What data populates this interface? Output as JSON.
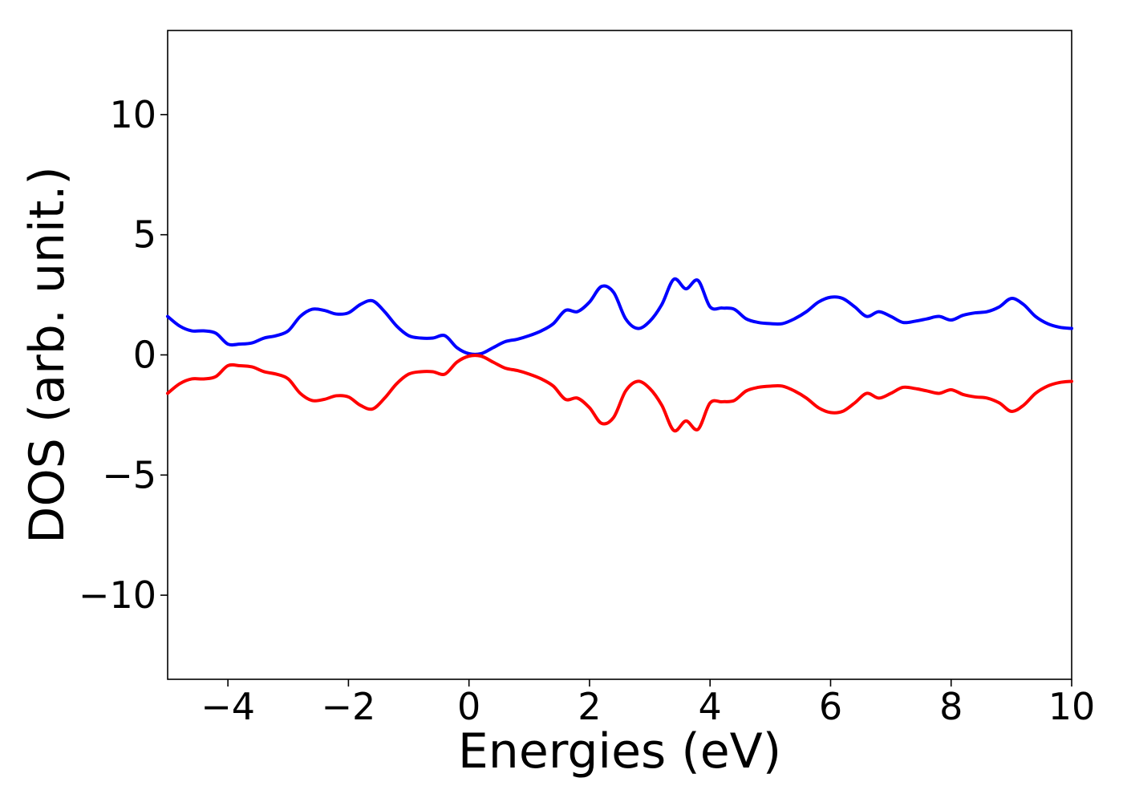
{
  "chart_data": {
    "type": "line",
    "title": "",
    "xlabel": "Energies (eV)",
    "ylabel": "DOS (arb. unit.)",
    "xlim": [
      -5,
      10
    ],
    "ylim": [
      -13.5,
      13.5
    ],
    "xticks": [
      -4,
      -2,
      0,
      2,
      4,
      6,
      8,
      10
    ],
    "xtick_labels": [
      "−4",
      "−2",
      "0",
      "2",
      "4",
      "6",
      "8",
      "10"
    ],
    "yticks": [
      -10,
      -5,
      0,
      5,
      10
    ],
    "ytick_labels": [
      "−10",
      "−5",
      "0",
      "5",
      "10"
    ],
    "grid": false,
    "legend": false,
    "x": [
      -5.0,
      -4.8,
      -4.6,
      -4.4,
      -4.2,
      -4.0,
      -3.8,
      -3.6,
      -3.4,
      -3.2,
      -3.0,
      -2.8,
      -2.6,
      -2.4,
      -2.2,
      -2.0,
      -1.8,
      -1.6,
      -1.4,
      -1.2,
      -1.0,
      -0.8,
      -0.6,
      -0.4,
      -0.2,
      0.0,
      0.2,
      0.4,
      0.6,
      0.8,
      1.0,
      1.2,
      1.4,
      1.6,
      1.8,
      2.0,
      2.2,
      2.4,
      2.6,
      2.8,
      3.0,
      3.2,
      3.4,
      3.6,
      3.8,
      4.0,
      4.2,
      4.4,
      4.6,
      4.8,
      5.0,
      5.2,
      5.4,
      5.6,
      5.8,
      6.0,
      6.2,
      6.4,
      6.6,
      6.8,
      7.0,
      7.2,
      7.4,
      7.6,
      7.8,
      8.0,
      8.2,
      8.4,
      8.6,
      8.8,
      9.0,
      9.2,
      9.4,
      9.6,
      9.8,
      10.0
    ],
    "series": [
      {
        "color": "#0000ff",
        "values": [
          1.6,
          1.2,
          1.0,
          1.0,
          0.9,
          0.45,
          0.45,
          0.5,
          0.7,
          0.8,
          1.0,
          1.6,
          1.9,
          1.85,
          1.7,
          1.75,
          2.1,
          2.25,
          1.8,
          1.2,
          0.8,
          0.7,
          0.7,
          0.8,
          0.3,
          0.05,
          0.05,
          0.3,
          0.55,
          0.65,
          0.8,
          1.0,
          1.3,
          1.85,
          1.8,
          2.2,
          2.85,
          2.6,
          1.5,
          1.1,
          1.4,
          2.1,
          3.15,
          2.75,
          3.1,
          2.0,
          1.95,
          1.9,
          1.5,
          1.35,
          1.3,
          1.3,
          1.5,
          1.8,
          2.2,
          2.4,
          2.35,
          2.0,
          1.6,
          1.8,
          1.6,
          1.35,
          1.4,
          1.5,
          1.6,
          1.45,
          1.65,
          1.75,
          1.8,
          2.0,
          2.35,
          2.1,
          1.6,
          1.3,
          1.15,
          1.1
        ]
      },
      {
        "color": "#ff0000",
        "values": [
          -1.6,
          -1.2,
          -1.0,
          -1.0,
          -0.9,
          -0.45,
          -0.45,
          -0.5,
          -0.7,
          -0.8,
          -1.0,
          -1.6,
          -1.9,
          -1.85,
          -1.7,
          -1.75,
          -2.1,
          -2.25,
          -1.8,
          -1.2,
          -0.8,
          -0.7,
          -0.7,
          -0.8,
          -0.3,
          -0.05,
          -0.05,
          -0.3,
          -0.55,
          -0.65,
          -0.8,
          -1.0,
          -1.3,
          -1.85,
          -1.8,
          -2.2,
          -2.85,
          -2.6,
          -1.5,
          -1.1,
          -1.4,
          -2.1,
          -3.15,
          -2.75,
          -3.1,
          -2.0,
          -1.95,
          -1.9,
          -1.5,
          -1.35,
          -1.3,
          -1.3,
          -1.5,
          -1.8,
          -2.2,
          -2.4,
          -2.35,
          -2.0,
          -1.6,
          -1.8,
          -1.6,
          -1.35,
          -1.4,
          -1.5,
          -1.6,
          -1.45,
          -1.65,
          -1.75,
          -1.8,
          -2.0,
          -2.35,
          -2.1,
          -1.6,
          -1.3,
          -1.15,
          -1.1
        ]
      }
    ]
  }
}
